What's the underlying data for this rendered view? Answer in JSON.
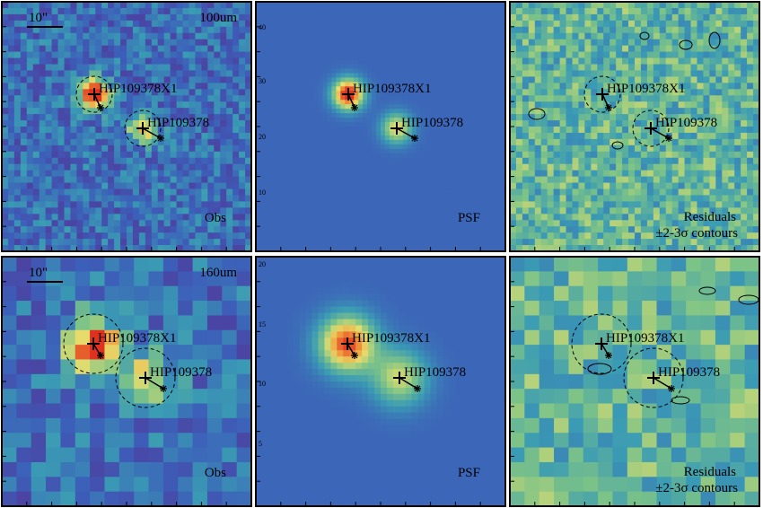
{
  "rows": [
    {
      "band": "100um",
      "scale_bar": "10\"",
      "obs_label": "Obs",
      "psf_label": "PSF",
      "residual_label": "Residuals",
      "contour_label": "±2-3σ contours",
      "sources": [
        "HIP109378X1",
        "HIP109378"
      ],
      "psf_ticks": [
        "40",
        "30",
        "20",
        "10"
      ]
    },
    {
      "band": "160um",
      "scale_bar": "10\"",
      "obs_label": "Obs",
      "psf_label": "PSF",
      "residual_label": "Residuals",
      "contour_label": "±2-3σ contours",
      "sources": [
        "HIP109378X1",
        "HIP109378"
      ],
      "psf_ticks": [
        "20",
        "15",
        "10",
        "5"
      ]
    }
  ]
}
